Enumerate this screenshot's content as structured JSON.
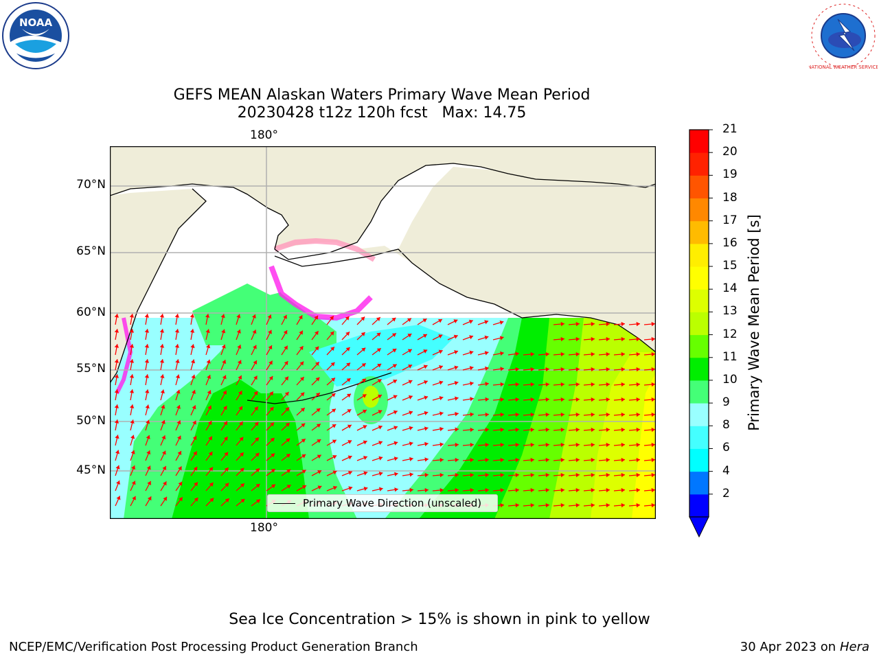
{
  "header": {
    "title_line1": "GEFS MEAN Alaskan Waters Primary Wave Mean Period",
    "title_line2": "20230428 t12z 120h fcst   Max: 14.75"
  },
  "logos": {
    "left": "noaa-logo",
    "right": "national-weather-service-logo",
    "left_text": "NOAA",
    "right_text": "NATIONAL WEATHER SERVICE"
  },
  "map": {
    "lat_labels": [
      "70°N",
      "65°N",
      "60°N",
      "55°N",
      "50°N",
      "45°N"
    ],
    "lon_label_top": "180°",
    "lon_label_bottom": "180°",
    "legend_label": "Primary Wave Direction (unscaled)",
    "land_color": "#efedd9",
    "arrow_color": "#ff0000",
    "ice_note_colors": [
      "#ff22ee",
      "#ff9966",
      "#ffdd00"
    ]
  },
  "colorbar": {
    "title": "Primary Wave Mean Period [s]",
    "ticks": [
      "21",
      "20",
      "19",
      "18",
      "17",
      "16",
      "15",
      "14",
      "13",
      "12",
      "11",
      "10",
      "9",
      "8",
      "6",
      "4",
      "2"
    ],
    "colors": [
      "#0000ff",
      "#0077ff",
      "#00ffff",
      "#44ffff",
      "#99ffff",
      "#44ff77",
      "#00ee00",
      "#66ff00",
      "#bbff00",
      "#ddff00",
      "#ffff00",
      "#ffee00",
      "#ffbb00",
      "#ff8800",
      "#ff5500",
      "#ff2200",
      "#ff0000"
    ]
  },
  "footer": {
    "note": "Sea Ice Concentration > 15% is shown in pink to yellow",
    "left": "NCEP/EMC/Verification Post Processing Product Generation Branch",
    "right_prefix": "30 Apr 2023 on ",
    "right_machine": "Hera"
  }
}
